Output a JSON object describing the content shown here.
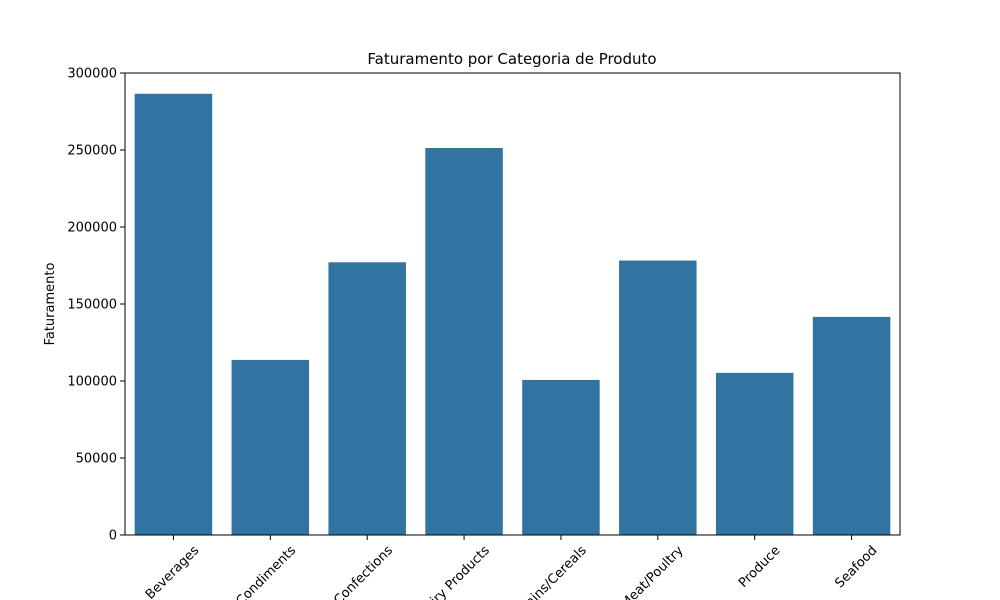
{
  "chart_data": {
    "type": "bar",
    "title": "Faturamento por Categoria de Produto",
    "xlabel": "",
    "ylabel": "Faturamento",
    "categories": [
      "Beverages",
      "Condiments",
      "Confections",
      "Dairy Products",
      "Grains/Cereals",
      "Meat/Poultry",
      "Produce",
      "Seafood"
    ],
    "values": [
      286500,
      113700,
      177100,
      251300,
      100700,
      178200,
      105300,
      141600
    ],
    "ylim": [
      0,
      300000
    ],
    "yticks": [
      0,
      50000,
      100000,
      150000,
      200000,
      250000,
      300000
    ],
    "grid": false,
    "legend": "none",
    "bar_color": "#3274a1",
    "xtick_rotation": 45
  }
}
